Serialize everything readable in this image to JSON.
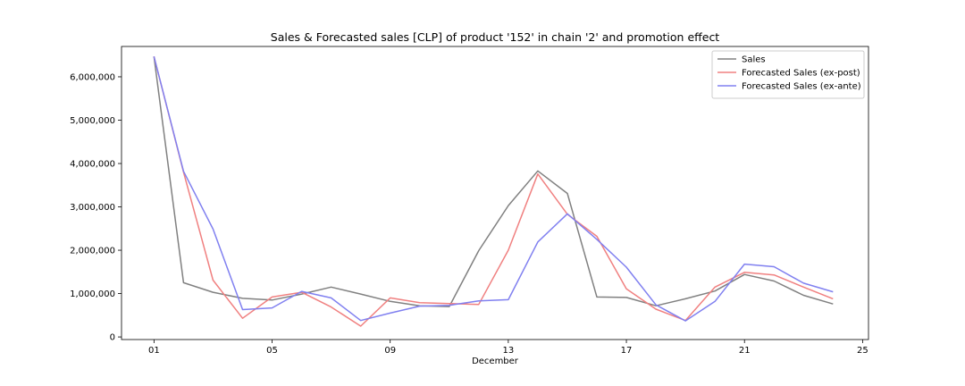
{
  "chart_data": {
    "type": "line",
    "title": "Sales & Forecasted sales [CLP] of product '152' in chain '2' and promotion effect",
    "xlabel": "December",
    "ylabel": "",
    "x": [
      1,
      2,
      3,
      4,
      5,
      6,
      7,
      8,
      9,
      10,
      11,
      12,
      13,
      14,
      15,
      16,
      17,
      18,
      19,
      20,
      21,
      22,
      23,
      24
    ],
    "xlim": [
      -0.1,
      25.2
    ],
    "ylim": [
      -60000,
      6700000
    ],
    "x_ticks": [
      {
        "value": 1,
        "label": "01"
      },
      {
        "value": 5,
        "label": "05"
      },
      {
        "value": 9,
        "label": "09"
      },
      {
        "value": 13,
        "label": "13"
      },
      {
        "value": 17,
        "label": "17"
      },
      {
        "value": 21,
        "label": "21"
      },
      {
        "value": 25,
        "label": "25"
      }
    ],
    "y_ticks": [
      {
        "value": 0,
        "label": "0"
      },
      {
        "value": 1000000,
        "label": "1,000,000"
      },
      {
        "value": 2000000,
        "label": "2,000,000"
      },
      {
        "value": 3000000,
        "label": "3,000,000"
      },
      {
        "value": 4000000,
        "label": "4,000,000"
      },
      {
        "value": 5000000,
        "label": "5,000,000"
      },
      {
        "value": 6000000,
        "label": "6,000,000"
      }
    ],
    "grid": false,
    "legend_position": "top-right",
    "series": [
      {
        "name": "Sales",
        "color": "#808080",
        "values": [
          6470000,
          1250000,
          1030000,
          890000,
          850000,
          990000,
          1150000,
          990000,
          820000,
          720000,
          700000,
          1990000,
          3030000,
          3830000,
          3310000,
          920000,
          910000,
          720000,
          880000,
          1060000,
          1440000,
          1290000,
          960000,
          760000
        ]
      },
      {
        "name": "Forecasted Sales (ex-post)",
        "color": "#f08080",
        "values": [
          6470000,
          3800000,
          1310000,
          430000,
          920000,
          1030000,
          690000,
          250000,
          900000,
          790000,
          770000,
          750000,
          2000000,
          3760000,
          2830000,
          2320000,
          1110000,
          640000,
          380000,
          1150000,
          1490000,
          1430000,
          1150000,
          880000
        ]
      },
      {
        "name": "Forecasted Sales (ex-ante)",
        "color": "#8080f0",
        "values": [
          6470000,
          3820000,
          2490000,
          630000,
          670000,
          1050000,
          900000,
          380000,
          550000,
          710000,
          730000,
          830000,
          860000,
          2190000,
          2840000,
          2250000,
          1610000,
          740000,
          370000,
          820000,
          1680000,
          1620000,
          1240000,
          1040000
        ]
      }
    ]
  }
}
